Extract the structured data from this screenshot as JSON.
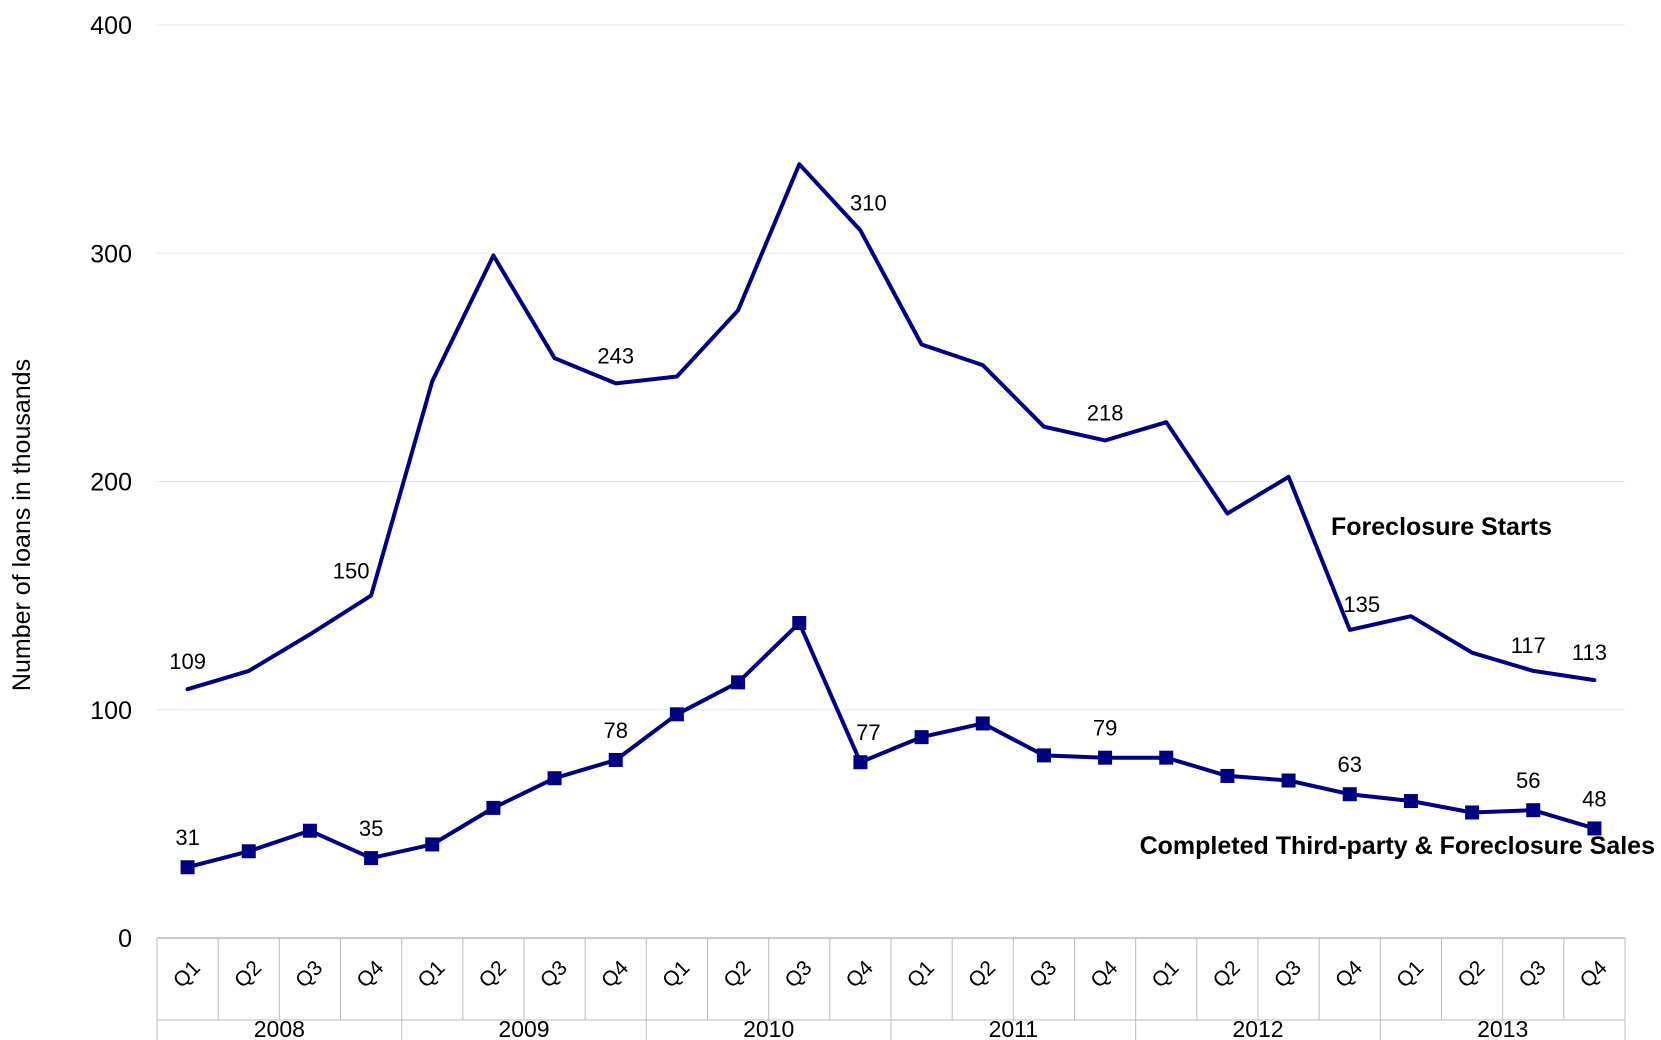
{
  "chart_data": {
    "type": "line",
    "title": "",
    "ylabel": "Number of loans in thousands",
    "ylim": [
      0,
      400
    ],
    "yticks": [
      0,
      100,
      200,
      300,
      400
    ],
    "grid": true,
    "years": [
      "2008",
      "2009",
      "2010",
      "2011",
      "2012",
      "2013"
    ],
    "quarters": [
      "Q1",
      "Q2",
      "Q3",
      "Q4"
    ],
    "categories": [
      "2008 Q1",
      "2008 Q2",
      "2008 Q3",
      "2008 Q4",
      "2009 Q1",
      "2009 Q2",
      "2009 Q3",
      "2009 Q4",
      "2010 Q1",
      "2010 Q2",
      "2010 Q3",
      "2010 Q4",
      "2011 Q1",
      "2011 Q2",
      "2011 Q3",
      "2011 Q4",
      "2012 Q1",
      "2012 Q2",
      "2012 Q3",
      "2012 Q4",
      "2013 Q1",
      "2013 Q2",
      "2013 Q3",
      "2013 Q4"
    ],
    "series": [
      {
        "name": "Foreclosure Starts",
        "color": "#000080",
        "marker": "none",
        "values": [
          109,
          117,
          133,
          150,
          244,
          299,
          254,
          243,
          246,
          275,
          339,
          310,
          260,
          251,
          224,
          218,
          226,
          186,
          202,
          135,
          141,
          125,
          117,
          113
        ],
        "labels": {
          "0": "109",
          "3": "150",
          "7": "243",
          "11": "310",
          "15": "218",
          "19": "135",
          "22": "117",
          "23": "113"
        }
      },
      {
        "name": "Completed Third-party & Foreclosure Sales",
        "color": "#000080",
        "marker": "square",
        "values": [
          31,
          38,
          47,
          35,
          41,
          57,
          70,
          78,
          98,
          112,
          138,
          77,
          88,
          94,
          80,
          79,
          79,
          71,
          69,
          63,
          60,
          55,
          56,
          48
        ],
        "labels": {
          "0": "31",
          "3": "35",
          "7": "78",
          "11": "77",
          "15": "79",
          "19": "63",
          "22": "56",
          "23": "48"
        }
      }
    ]
  }
}
